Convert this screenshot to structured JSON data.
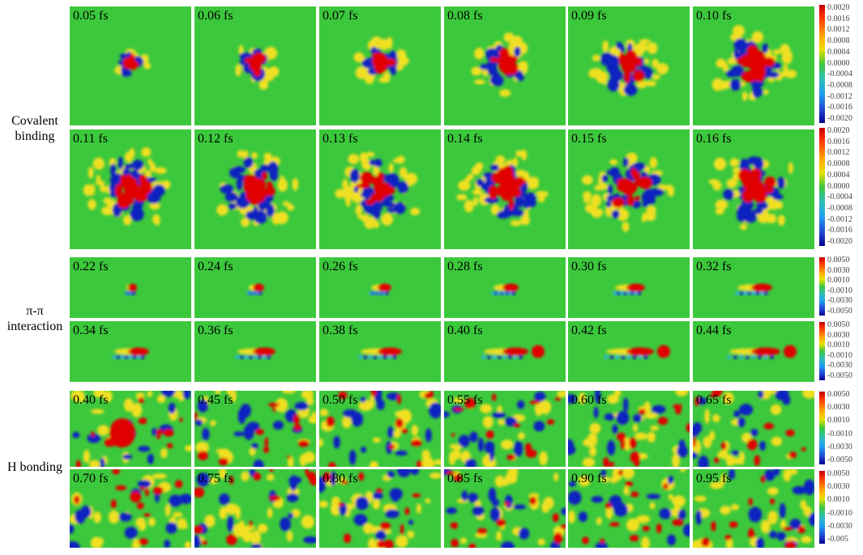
{
  "row_labels": [
    {
      "text": "Covalent binding",
      "lines": [
        "Covalent",
        "binding"
      ]
    },
    {
      "text": "π-π interaction",
      "lines": [
        "π-π",
        "interaction"
      ]
    },
    {
      "text": "H bonding",
      "lines": [
        "H bonding"
      ]
    }
  ],
  "rows": [
    {
      "group": "covalent",
      "times": [
        "0.05 fs",
        "0.06 fs",
        "0.07 fs",
        "0.08 fs",
        "0.09 fs",
        "0.10 fs"
      ]
    },
    {
      "group": "covalent",
      "times": [
        "0.11 fs",
        "0.12 fs",
        "0.13 fs",
        "0.14 fs",
        "0.15 fs",
        "0.16 fs"
      ]
    },
    {
      "group": "pipi",
      "times": [
        "0.22 fs",
        "0.24 fs",
        "0.26 fs",
        "0.28 fs",
        "0.30 fs",
        "0.32 fs"
      ]
    },
    {
      "group": "pipi",
      "times": [
        "0.34 fs",
        "0.36 fs",
        "0.38 fs",
        "0.40 fs",
        "0.42 fs",
        "0.44 fs"
      ]
    },
    {
      "group": "hbond",
      "times": [
        "0.40 fs",
        "0.45 fs",
        "0.50 fs",
        "0.55 fs",
        "0.60 fs",
        "0.65 fs"
      ]
    },
    {
      "group": "hbond",
      "times": [
        "0.70 fs",
        "0.75 fs",
        "0.80 fs",
        "0.85 fs",
        "0.90 fs",
        "0.95 fs"
      ]
    }
  ],
  "colorbars": [
    {
      "ticks": [
        "0.0020",
        "0.0016",
        "0.0012",
        "0.0008",
        "0.0004",
        "0.0000",
        "-0.0004",
        "-0.0008",
        "-0.0012",
        "-0.0016",
        "-0.0020"
      ]
    },
    {
      "ticks": [
        "0.0020",
        "0.0016",
        "0.0012",
        "0.0008",
        "0.0004",
        "0.0000",
        "-0.0004",
        "-0.0008",
        "-0.0012",
        "-0.0016",
        "-0.0020"
      ]
    },
    {
      "ticks": [
        "0.0050",
        "0.0030",
        "0.0010",
        "-0.0010",
        "-0.0030",
        "-0.0050"
      ]
    },
    {
      "ticks": [
        "0.0050",
        "0.0030",
        "0.0010",
        "-0.0010",
        "-0.0030",
        "-0.0050"
      ]
    },
    {
      "ticks": [
        "0.0050",
        "0.0030",
        "0.0010",
        "-0.0010",
        "-0.0030",
        "-0.0050"
      ]
    },
    {
      "ticks": [
        "0.0050",
        "0.0030",
        "0.0010",
        "-0.0010",
        "-0.0030",
        "-0.005"
      ]
    }
  ],
  "colors": {
    "positive": "#e00000",
    "negative": "#1020c0",
    "background": "#3cc83c",
    "weak_positive": "#f0e020",
    "weak_negative": "#30b0f0"
  }
}
